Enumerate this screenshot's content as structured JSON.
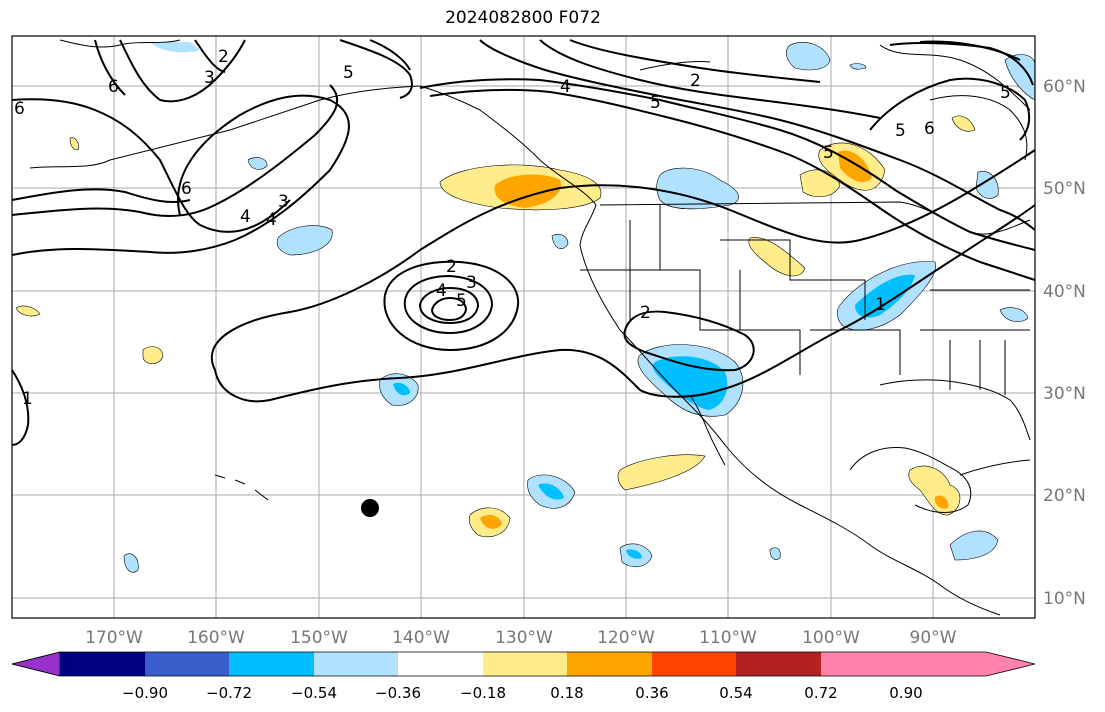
{
  "title": "2024082800 F072",
  "map": {
    "lon_ticks": [
      "170°W",
      "160°W",
      "150°W",
      "140°W",
      "130°W",
      "120°W",
      "110°W",
      "100°W",
      "90°W"
    ],
    "lat_ticks": [
      "60°N",
      "50°N",
      "40°N",
      "30°N",
      "20°N",
      "10°N"
    ]
  },
  "contour_labels": [
    "6",
    "3",
    "2",
    "5",
    "4",
    "6",
    "5",
    "4",
    "5",
    "6",
    "4",
    "3",
    "2",
    "2",
    "3",
    "4",
    "5",
    "2",
    "1",
    "1",
    "6",
    "5",
    "5"
  ],
  "colorbar": {
    "labels": [
      "−0.90",
      "−0.72",
      "−0.54",
      "−0.36",
      "−0.18",
      "0.18",
      "0.36",
      "0.54",
      "0.72",
      "0.90"
    ],
    "colors": [
      "#9932cc",
      "#000080",
      "#3a5fcd",
      "#00bfff",
      "#b0e2ff",
      "#ffffff",
      "#ffec8b",
      "#ffa500",
      "#ff4500",
      "#b22222",
      "#ff82ab"
    ]
  },
  "marker": {
    "label": "black-dot",
    "color": "#000000"
  }
}
